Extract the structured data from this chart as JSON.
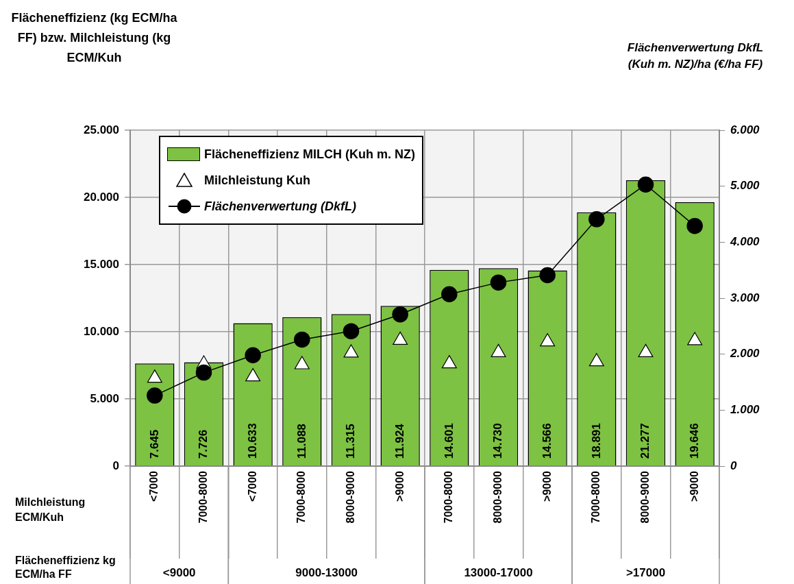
{
  "chart_data": {
    "type": "bar",
    "ylabel": "Flächeneffizienz (kg ECM/ha FF) bzw. Milchleistung (kg ECM/Kuh",
    "y2label": "Flächenverwertung DkfL (Kuh m. NZ)/ha (€/ha FF)",
    "xlabel": "Milchleistung ECM/Kuh",
    "annotations": [
      "Flächeneffizienz kg ECM/ha FF",
      "<9000",
      "9000-13000",
      "13000-17000",
      ">17000"
    ],
    "categories": [
      "<7000",
      "7000-8000",
      "<7000",
      "7000-8000",
      "8000-9000",
      ">9000",
      "7000-8000",
      "8000-9000",
      ">9000",
      "7000-8000",
      "8000-9000",
      ">9000"
    ],
    "series": [
      {
        "name": "Flächeneffizienz MILCH (Kuh m. NZ)",
        "color": "#7dc242",
        "values": [
          7645,
          7726,
          10633,
          11088,
          11315,
          11924,
          14601,
          14730,
          14566,
          18891,
          21277,
          19646
        ],
        "value_labels": [
          "7.645",
          "7.726",
          "10.633",
          "11.088",
          "11.315",
          "11.924",
          "14.601",
          "14.730",
          "14.566",
          "18.891",
          "21.277",
          "19.646"
        ]
      },
      {
        "name": "Milchleistung Kuh",
        "type": "scatter",
        "color": "#ffffff",
        "marker": "triangle",
        "values": [
          6550,
          7600,
          6650,
          7550,
          8420,
          9370,
          7620,
          8450,
          9250,
          7770,
          8450,
          9340
        ]
      },
      {
        "name": "Flächenverwertung (DkfL)",
        "type": "line",
        "axis": "y2",
        "color": "#000000",
        "marker": "circle",
        "values": [
          1260,
          1670,
          1980,
          2260,
          2410,
          2710,
          3070,
          3280,
          3410,
          4410,
          5030,
          4290
        ]
      }
    ],
    "ylim": [
      0,
      25000
    ],
    "yticks": [
      {
        "value": 0,
        "label": "0"
      },
      {
        "value": 5000,
        "label": "5.000"
      },
      {
        "value": 10000,
        "label": "10.000"
      },
      {
        "value": 15000,
        "label": "15.000"
      },
      {
        "value": 20000,
        "label": "20.000"
      },
      {
        "value": 25000,
        "label": "25.000"
      }
    ],
    "y2lim": [
      0,
      6000
    ],
    "y2ticks": [
      {
        "value": 0,
        "label": "0"
      },
      {
        "value": 1000,
        "label": "1.000"
      },
      {
        "value": 2000,
        "label": "2.000"
      },
      {
        "value": 3000,
        "label": "3.000"
      },
      {
        "value": 4000,
        "label": "4.000"
      },
      {
        "value": 5000,
        "label": "5.000"
      },
      {
        "value": 6000,
        "label": "6.000"
      }
    ],
    "grid": true,
    "legend": "top left"
  }
}
